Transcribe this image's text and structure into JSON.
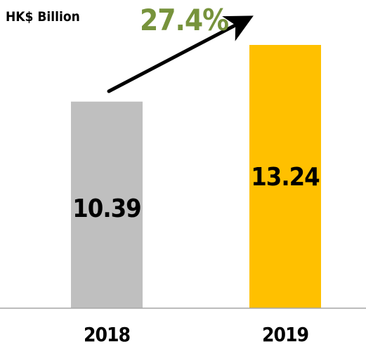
{
  "chart_data": {
    "type": "bar",
    "unit_label": "HK$ Billion",
    "categories": [
      "2018",
      "2019"
    ],
    "values": [
      10.39,
      13.24
    ],
    "value_labels": [
      "10.39",
      "13.24"
    ],
    "bar_colors": [
      "#bfbfbf",
      "#ffc000"
    ],
    "growth_annotation": "27.4%",
    "growth_color": "#77933c",
    "ylim": [
      0,
      14
    ],
    "grid": false,
    "legend": "none"
  }
}
